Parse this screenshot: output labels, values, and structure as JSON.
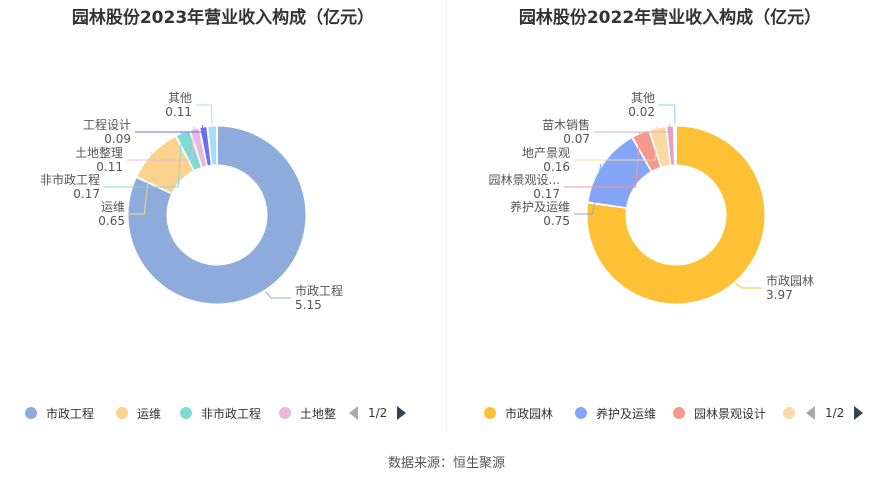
{
  "source": "数据来源：恒生聚源",
  "chart_data": [
    {
      "type": "pie",
      "title": "园林股份2023年营业收入构成（亿元）",
      "slices": [
        {
          "name": "市政工程",
          "value": 5.15,
          "label_value": "5.15",
          "color": "#8eacdb"
        },
        {
          "name": "运维",
          "value": 0.65,
          "label_value": "0.65",
          "color": "#fcd38e"
        },
        {
          "name": "非市政工程",
          "value": 0.17,
          "label_value": "0.17",
          "color": "#83d8d3"
        },
        {
          "name": "土地整理",
          "value": 0.11,
          "label_value": "0.11",
          "color": "#e9b7df"
        },
        {
          "name": "工程设计",
          "value": 0.09,
          "label_value": "0.09",
          "color": "#6a6ff0"
        },
        {
          "name": "其他",
          "value": 0.11,
          "label_value": "0.11",
          "color": "#a7dcf7"
        }
      ],
      "legend": {
        "items": [
          "市政工程",
          "运维",
          "非市政工程",
          "土地整"
        ],
        "page": "1/2"
      }
    },
    {
      "type": "pie",
      "title": "园林股份2022年营业收入构成（亿元）",
      "slices": [
        {
          "name": "市政园林",
          "value": 3.97,
          "label_value": "3.97",
          "color": "#fec035"
        },
        {
          "name": "养护及运维",
          "value": 0.75,
          "label_value": "0.75",
          "color": "#85a5f7"
        },
        {
          "name": "园林景观设...",
          "value": 0.17,
          "label_value": "0.17",
          "color": "#f5988e"
        },
        {
          "name": "地产景观",
          "value": 0.16,
          "label_value": "0.16",
          "color": "#fcd9a0"
        },
        {
          "name": "苗木销售",
          "value": 0.07,
          "label_value": "0.07",
          "color": "#e0a1c8"
        },
        {
          "name": "其他",
          "value": 0.02,
          "label_value": "0.02",
          "color": "#8fc8f0"
        }
      ],
      "legend": {
        "items": [
          "市政园林",
          "养护及运维",
          "园林景观设计",
          ""
        ],
        "page": "1/2"
      }
    }
  ]
}
